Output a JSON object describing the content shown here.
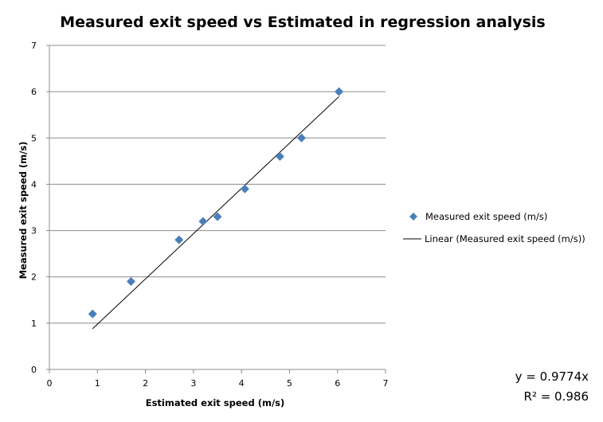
{
  "chart_data": {
    "type": "scatter",
    "title": "Measured exit speed vs Estimated in regression analysis",
    "xlabel": "Estimated exit speed (m/s)",
    "ylabel": "Measured exit speed (m/s)",
    "xlim": [
      0,
      7
    ],
    "ylim": [
      0,
      7
    ],
    "xticks": [
      "0",
      "1",
      "2",
      "3",
      "4",
      "5",
      "6",
      "7"
    ],
    "yticks": [
      "0",
      "1",
      "2",
      "3",
      "4",
      "5",
      "6",
      "7"
    ],
    "grid": "horizontal",
    "legend_position": "right",
    "series": [
      {
        "name": "Measured exit speed (m/s)",
        "color": "#4a7ebb",
        "marker": "diamond",
        "x": [
          0.9,
          1.7,
          2.7,
          3.2,
          3.5,
          4.07,
          4.8,
          5.25,
          6.03
        ],
        "y": [
          1.2,
          1.9,
          2.8,
          3.2,
          3.3,
          3.9,
          4.6,
          5.0,
          6.0
        ]
      }
    ],
    "trendline": {
      "name": "Linear (Measured exit speed (m/s))",
      "color": "#000000",
      "slope": 0.9774,
      "x_range": [
        0.9,
        6.03
      ]
    },
    "annotations": {
      "equation": "y = 0.9774x",
      "r_squared": "R² = 0.986"
    }
  }
}
